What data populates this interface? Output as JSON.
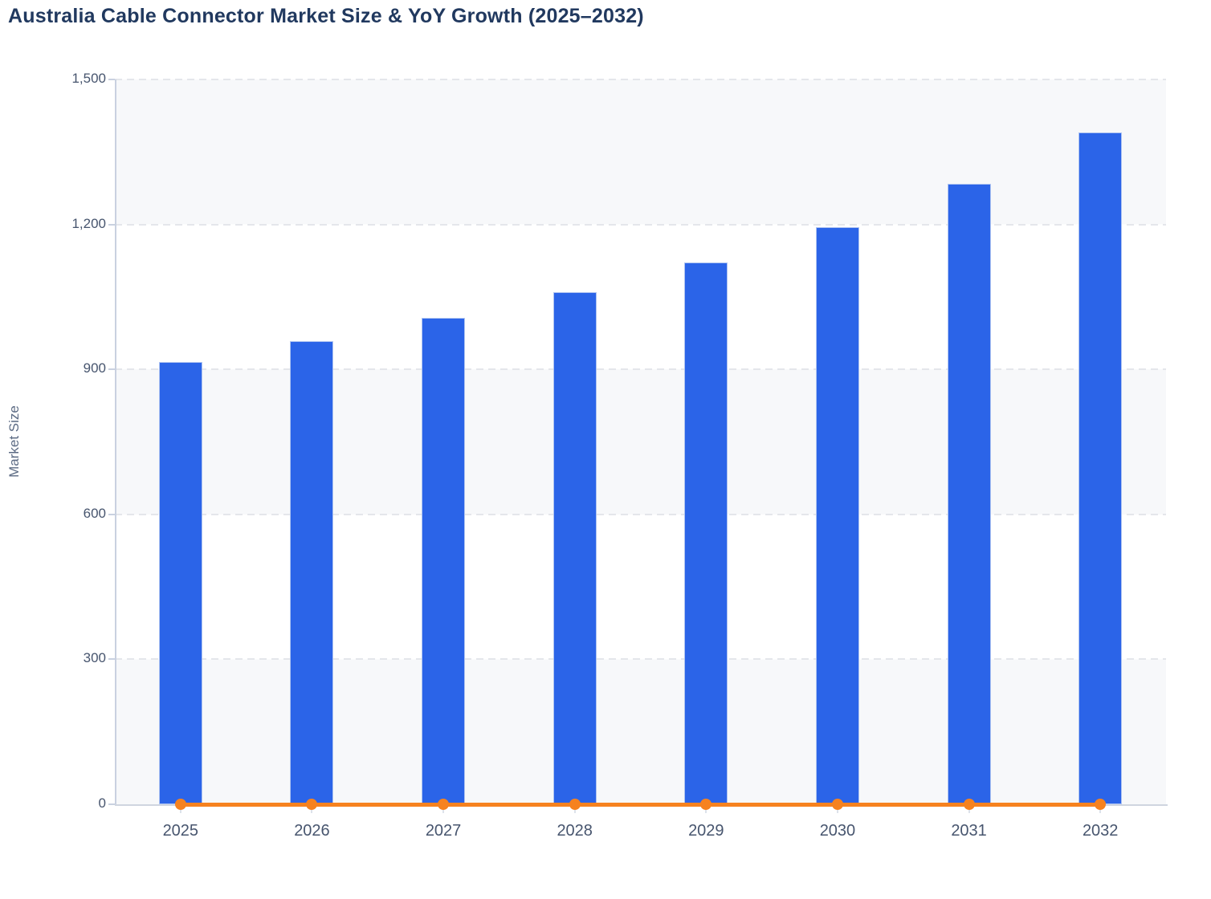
{
  "title": "Australia Cable Connector Market Size & YoY Growth (2025–2032)",
  "colors": {
    "bar_blue": "#2B64E8",
    "line_orange": "#F6821F",
    "title_navy": "#21395F",
    "tick_label": "#47556E",
    "band_gray": "#F7F8FA",
    "gridline": "#E4E6EB",
    "axis_line": "#C9D1E0"
  },
  "chart_data": {
    "type": "bar",
    "title": "Australia Cable Connector Market Size & YoY Growth (2025–2032)",
    "categories": [
      "2025",
      "2026",
      "2027",
      "2028",
      "2029",
      "2030",
      "2031",
      "2032"
    ],
    "series": [
      {
        "name": "Market Size",
        "type": "bar",
        "color": "#2B64E8",
        "values": [
          915,
          959,
          1007,
          1060,
          1122,
          1195,
          1284,
          1391
        ]
      },
      {
        "name": "YoY Growth",
        "type": "line",
        "color": "#F6821F",
        "values_as_rendered": [
          0,
          0,
          0,
          0,
          0,
          0,
          0,
          0
        ]
      }
    ],
    "xlabel": "",
    "ylabel": "Market Size",
    "ylim": [
      0,
      1500
    ],
    "yticks": [
      0,
      300,
      600,
      900,
      1200,
      1500
    ],
    "ytick_labels": [
      "0",
      "300",
      "600",
      "900",
      "1,200",
      "1,500"
    ],
    "grid": "horizontal-dashed",
    "legend_position": "none",
    "plot_background": "alternating horizontal bands"
  }
}
